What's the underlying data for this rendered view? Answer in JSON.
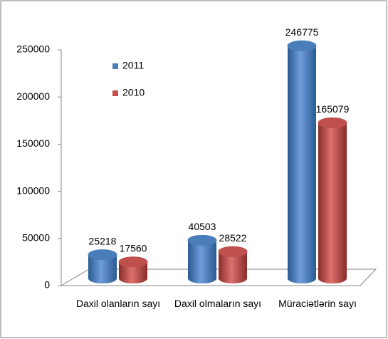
{
  "chart_data": {
    "type": "bar3d",
    "categories": [
      "Daxil olanların sayı",
      "Daxil olmaların sayı",
      "Müraciətlərin sayı"
    ],
    "series": [
      {
        "name": "2011",
        "color": "#4a7ebb",
        "values": [
          25218,
          40503,
          246775
        ]
      },
      {
        "name": "2010",
        "color": "#c0504d",
        "values": [
          17560,
          28522,
          165079
        ]
      }
    ],
    "ylim": [
      0,
      250000
    ],
    "yticks": [
      0,
      50000,
      100000,
      150000,
      200000,
      250000
    ],
    "grid": false,
    "legend": "upper-left"
  }
}
